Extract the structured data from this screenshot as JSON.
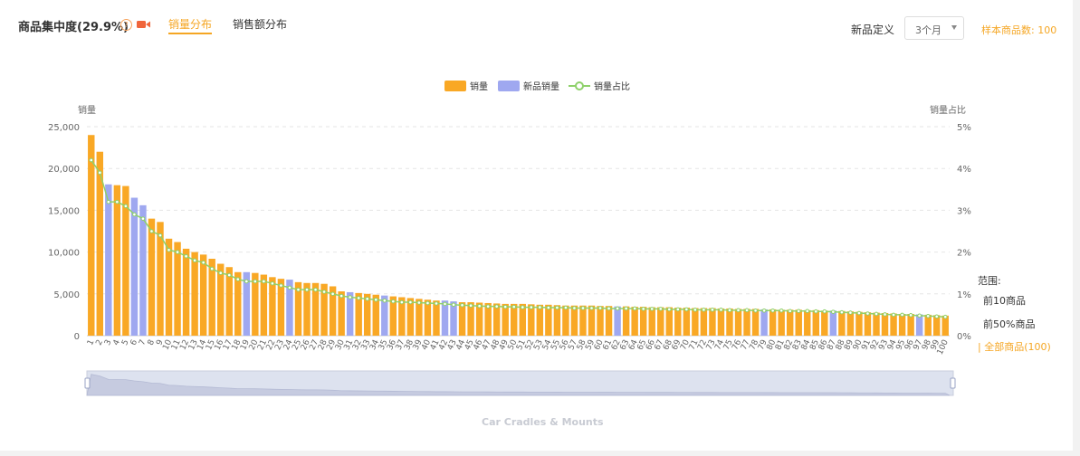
{
  "header": {
    "title": "商品集中度(29.9%)",
    "help_glyph": "?",
    "tabs": [
      {
        "label": "销量分布",
        "active": true
      },
      {
        "label": "销售额分布",
        "active": false
      }
    ]
  },
  "filters": {
    "new_product_label": "新品定义",
    "new_product_value": "3个月",
    "sample_count": "样本商品数: 100"
  },
  "range_panel": {
    "title": "范围:",
    "options": [
      {
        "label": "前10商品",
        "active": false
      },
      {
        "label": "前50%商品",
        "active": false
      },
      {
        "label": "| 全部商品(100)",
        "active": true
      }
    ]
  },
  "colors": {
    "sales": "#f9a825",
    "new_sales": "#9fa8f0",
    "ratio_line": "#8fd16b",
    "accent": "#f5a623"
  },
  "watermark": "Car Cradles & Mounts",
  "chart_data": {
    "type": "bar",
    "left_axis_label": "销量",
    "right_axis_label": "销量占比",
    "legend": [
      "销量",
      "新品销量",
      "销量占比"
    ],
    "ylim": [
      0,
      25000
    ],
    "y_ticks": [
      "0",
      "5,000",
      "10,000",
      "15,000",
      "20,000",
      "25,000"
    ],
    "y2lim": [
      0,
      5
    ],
    "y2_ticks": [
      "0%",
      "1%",
      "2%",
      "3%",
      "4%",
      "5%"
    ],
    "x_range": [
      1,
      100
    ],
    "values": [
      24000,
      22000,
      18100,
      18000,
      17900,
      16500,
      15600,
      14000,
      13600,
      11600,
      11200,
      10400,
      10000,
      9700,
      9200,
      8600,
      8200,
      7600,
      7600,
      7500,
      7300,
      7000,
      6800,
      6700,
      6400,
      6300,
      6300,
      6200,
      5900,
      5300,
      5200,
      5100,
      5000,
      4900,
      4800,
      4700,
      4600,
      4500,
      4400,
      4300,
      4200,
      4200,
      4100,
      4000,
      4000,
      3950,
      3900,
      3850,
      3800,
      3800,
      3800,
      3750,
      3700,
      3700,
      3650,
      3600,
      3600,
      3600,
      3600,
      3550,
      3550,
      3500,
      3500,
      3450,
      3450,
      3400,
      3400,
      3400,
      3350,
      3350,
      3300,
      3300,
      3300,
      3250,
      3250,
      3200,
      3200,
      3200,
      3150,
      3150,
      3100,
      3100,
      3100,
      3050,
      3050,
      3000,
      3000,
      2950,
      2900,
      2850,
      2800,
      2750,
      2700,
      2650,
      2600,
      2600,
      2550,
      2500,
      2450,
      2400
    ],
    "new_product_ranks": [
      3,
      6,
      7,
      19,
      24,
      31,
      35,
      42,
      43,
      62,
      79,
      87,
      97
    ],
    "ratio_percent": [
      4.2,
      3.9,
      3.2,
      3.2,
      3.1,
      2.9,
      2.8,
      2.5,
      2.4,
      2.05,
      2.0,
      1.9,
      1.8,
      1.75,
      1.6,
      1.5,
      1.45,
      1.35,
      1.3,
      1.3,
      1.3,
      1.25,
      1.2,
      1.15,
      1.1,
      1.1,
      1.1,
      1.05,
      1.0,
      0.95,
      0.92,
      0.9,
      0.88,
      0.86,
      0.84,
      0.82,
      0.8,
      0.8,
      0.79,
      0.78,
      0.77,
      0.76,
      0.74,
      0.73,
      0.72,
      0.71,
      0.7,
      0.7,
      0.69,
      0.69,
      0.68,
      0.68,
      0.68,
      0.67,
      0.67,
      0.67,
      0.66,
      0.66,
      0.66,
      0.66,
      0.65,
      0.65,
      0.65,
      0.65,
      0.64,
      0.64,
      0.64,
      0.63,
      0.63,
      0.63,
      0.62,
      0.62,
      0.62,
      0.62,
      0.61,
      0.61,
      0.61,
      0.6,
      0.6,
      0.6,
      0.6,
      0.59,
      0.59,
      0.59,
      0.58,
      0.58,
      0.57,
      0.56,
      0.55,
      0.54,
      0.53,
      0.52,
      0.51,
      0.5,
      0.5,
      0.49,
      0.48,
      0.47,
      0.46,
      0.45
    ],
    "grid": true,
    "legend_position": "top-center"
  }
}
